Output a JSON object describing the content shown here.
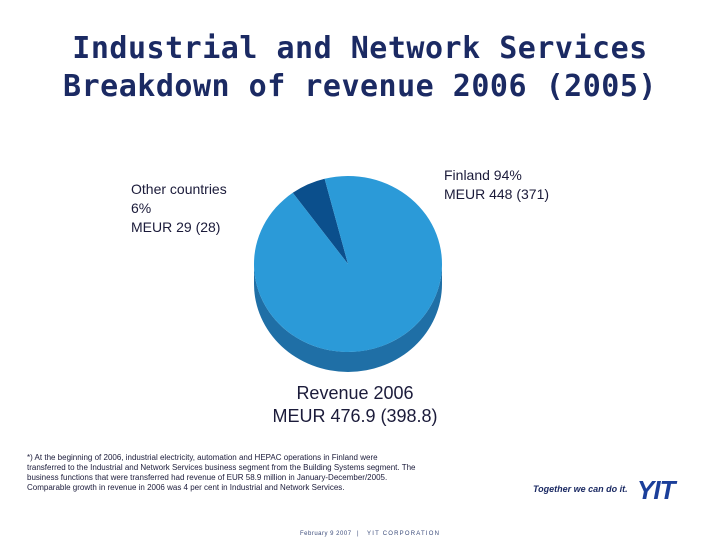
{
  "title": {
    "line1": "Industrial and Network Services",
    "line2": "Breakdown of revenue 2006 (2005)"
  },
  "chart_data": {
    "type": "pie",
    "title": "Breakdown of revenue 2006 (2005)",
    "slices": [
      {
        "name": "Finland",
        "percent": 94,
        "value_2006": 448,
        "value_2005": 371,
        "label_lines": [
          "Finland 94%",
          "MEUR 448 (371)"
        ],
        "color": "#2b9ad8"
      },
      {
        "name": "Other countries",
        "percent": 6,
        "value_2006": 29,
        "value_2005": 28,
        "label_lines": [
          "Other countries",
          "6%",
          "MEUR 29 (28)"
        ],
        "color": "#0b4f8c"
      }
    ],
    "total_lines": [
      "Revenue 2006",
      "MEUR 476.9 (398.8)"
    ]
  },
  "footnote": "*) At the beginning of 2006, industrial electricity, automation and HEPAC operations in Finland were transferred to the Industrial and Network Services business segment from the Building Systems segment. The business functions that were transferred had revenue of EUR 58.9 million in January-December/2005. Comparable growth in revenue in 2006 was 4 per cent in Industrial and Network Services.",
  "footer": {
    "date": "February 9 2007",
    "separator": "|",
    "company": "YIT CORPORATION"
  },
  "brand": {
    "slogan": "Together we can do it.",
    "logo_text": "YIT",
    "color": "#1b3f9a"
  },
  "colors": {
    "title": "#1b2a63",
    "finland_top": "#2b9ad8",
    "finland_side": "#1f6fa6",
    "other_top": "#0b4f8c",
    "other_side": "#083766"
  }
}
